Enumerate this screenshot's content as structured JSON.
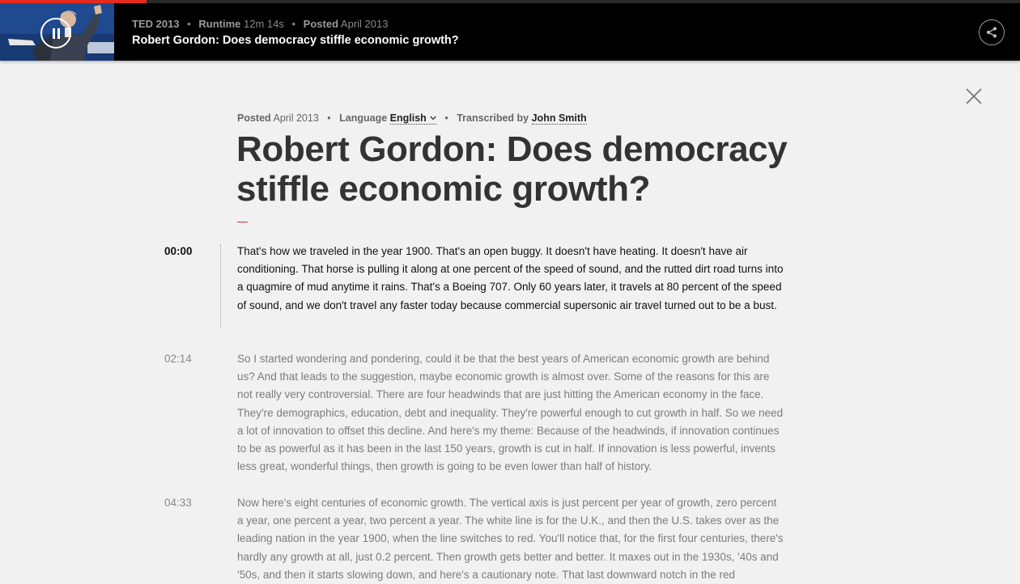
{
  "player": {
    "event_label": "TED 2013",
    "runtime_label": "Runtime",
    "runtime_value": "12m 14s",
    "posted_label": "Posted",
    "posted_value": "April 2013",
    "title": "Robert Gordon: Does democracy stiffle economic growth?",
    "progress_fraction": 0.144,
    "colors": {
      "accent": "#e62b1e",
      "bar_bg": "#000000"
    }
  },
  "transcript": {
    "posted_label": "Posted",
    "posted_value": "April 2013",
    "language_label": "Language",
    "language_value": "English",
    "transcribed_label": "Transcribed by",
    "transcriber": "John Smith",
    "title": "Robert Gordon: Does democracy stiffle economic growth?",
    "paragraphs": [
      {
        "time": "00:00",
        "text": "That's how we traveled in the year 1900. That's an open buggy. It doesn't have heating. It doesn't have air conditioning. That horse is pulling it along at one percent of the speed of sound, and the rutted dirt road turns into a quagmire of mud anytime it rains. That's a Boeing 707. Only 60 years later, it travels at 80 percent of the speed of sound, and we don't travel any faster today because commercial supersonic air travel turned out to be a bust."
      },
      {
        "time": "02:14",
        "text": "So I started wondering and pondering, could it be that the best years of American economic growth are behind us? And that leads to the suggestion, maybe economic growth is almost over. Some of the reasons for this are not really very controversial. There are four headwinds that are just hitting the American economy in the face. They're demographics, education, debt and inequality. They're powerful enough to cut growth in half. So we need a lot of innovation to offset this decline. And here's my theme: Because of the headwinds, if innovation continues to be as powerful as it has been in the last 150 years, growth is cut in half. If innovation is less powerful, invents less great, wonderful things, then growth is going to be even lower than half of history."
      },
      {
        "time": "04:33",
        "text": "Now here's eight centuries of economic growth. The vertical axis is just percent per year of growth, zero percent a year, one percent a year, two percent a year. The white line is for the U.K., and then the U.S. takes over as the leading nation in the year 1900, when the line switches to red. You'll notice that, for the first four centuries, there's hardly any growth at all, just 0.2 percent. Then growth gets better and better. It maxes out in the 1930s, '40s and '50s, and then it starts slowing down, and here's a cautionary note. That last downward notch in the red"
      }
    ]
  },
  "icons": {
    "pause": "pause-icon",
    "share": "share-icon",
    "close": "close-icon",
    "caret": "chevron-down-icon"
  }
}
